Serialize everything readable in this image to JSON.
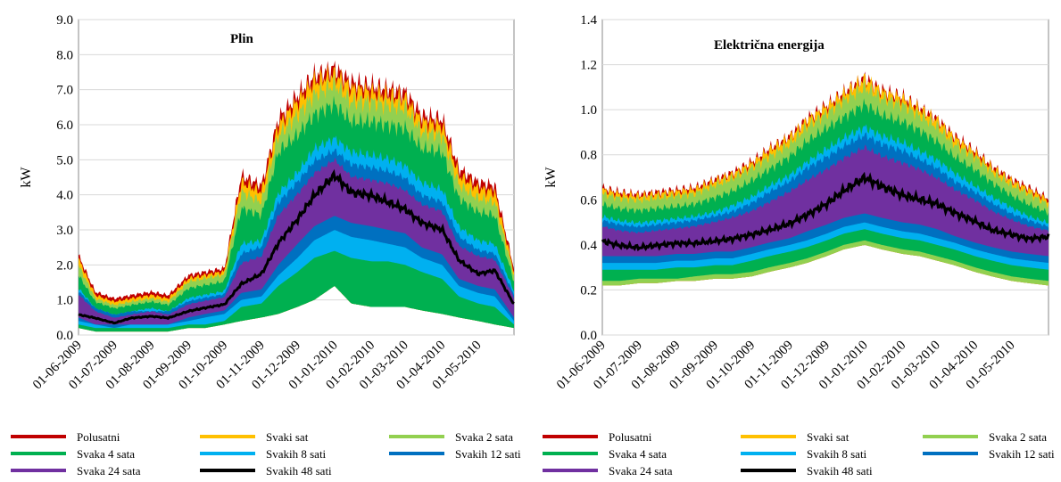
{
  "colors": {
    "Polusatni": "#c00000",
    "Svaki sat": "#ffc000",
    "Svaka 2 sata": "#92d050",
    "Svaka 4 sata": "#00b050",
    "Svakih 8 sati": "#00b0f0",
    "Svakih 12 sati": "#0070c0",
    "Svaka 24 sata": "#7030a0",
    "Svakih 48 sati": "#000000"
  },
  "chart_data": [
    {
      "type": "area",
      "title": "Plin",
      "xlabel": "",
      "ylabel": "kW",
      "ylim": [
        0,
        9
      ],
      "yticks": [
        "0.0",
        "1.0",
        "2.0",
        "3.0",
        "4.0",
        "5.0",
        "6.0",
        "7.0",
        "8.0",
        "9.0"
      ],
      "xticks": [
        "01-06-2009",
        "01-07-2009",
        "01-08-2009",
        "01-09-2009",
        "01-10-2009",
        "01-11-2009",
        "01-12-2009",
        "01-01-2010",
        "01-02-2010",
        "01-03-2010",
        "01-04-2010",
        "01-05-2010"
      ],
      "grid": true,
      "legend_position": "bottom",
      "x": [
        "2009-06-01",
        "2009-06-15",
        "2009-07-01",
        "2009-07-15",
        "2009-08-01",
        "2009-08-15",
        "2009-09-01",
        "2009-09-15",
        "2009-10-01",
        "2009-10-15",
        "2009-11-01",
        "2009-11-15",
        "2009-12-01",
        "2009-12-15",
        "2010-01-01",
        "2010-01-15",
        "2010-02-01",
        "2010-02-15",
        "2010-03-01",
        "2010-03-15",
        "2010-04-01",
        "2010-04-15",
        "2010-05-01",
        "2010-05-15",
        "2010-05-31"
      ],
      "series": [
        {
          "name": "Polusatni",
          "max": [
            2.4,
            1.3,
            1.1,
            1.2,
            1.3,
            1.2,
            1.8,
            1.9,
            2.0,
            4.8,
            4.5,
            6.5,
            7.2,
            7.8,
            8.0,
            7.6,
            7.5,
            7.4,
            7.3,
            6.6,
            6.5,
            5.0,
            4.6,
            4.5,
            2.0
          ],
          "min": [
            0.2,
            0.1,
            0.1,
            0.1,
            0.1,
            0.1,
            0.2,
            0.2,
            0.3,
            0.4,
            0.5,
            0.6,
            0.8,
            1.0,
            1.4,
            0.9,
            0.8,
            0.8,
            0.8,
            0.7,
            0.6,
            0.5,
            0.4,
            0.3,
            0.2
          ]
        },
        {
          "name": "Svaki sat",
          "max": [
            2.3,
            1.2,
            1.0,
            1.1,
            1.2,
            1.1,
            1.7,
            1.8,
            1.9,
            4.6,
            4.3,
            6.3,
            7.0,
            7.6,
            7.8,
            7.4,
            7.3,
            7.2,
            7.1,
            6.4,
            6.3,
            4.8,
            4.4,
            4.3,
            1.9
          ],
          "min": [
            0.2,
            0.1,
            0.1,
            0.1,
            0.1,
            0.1,
            0.2,
            0.2,
            0.3,
            0.4,
            0.5,
            0.6,
            0.8,
            1.0,
            1.4,
            0.9,
            0.8,
            0.8,
            0.8,
            0.7,
            0.6,
            0.5,
            0.4,
            0.3,
            0.2
          ]
        },
        {
          "name": "Svaka 2 sata",
          "max": [
            2.1,
            1.1,
            0.9,
            1.0,
            1.1,
            1.0,
            1.6,
            1.7,
            1.8,
            4.3,
            4.0,
            6.0,
            6.6,
            7.2,
            7.5,
            7.0,
            7.0,
            6.9,
            6.8,
            6.1,
            6.0,
            4.5,
            4.1,
            4.0,
            1.8
          ],
          "min": [
            0.2,
            0.1,
            0.1,
            0.1,
            0.1,
            0.1,
            0.2,
            0.2,
            0.3,
            0.4,
            0.5,
            0.6,
            0.8,
            1.0,
            1.4,
            0.9,
            0.8,
            0.8,
            0.8,
            0.7,
            0.6,
            0.5,
            0.4,
            0.3,
            0.2
          ]
        },
        {
          "name": "Svaka 4 sata",
          "max": [
            1.8,
            1.0,
            0.8,
            0.9,
            1.0,
            0.9,
            1.4,
            1.5,
            1.6,
            3.8,
            3.6,
            5.5,
            6.0,
            6.6,
            6.9,
            6.4,
            6.4,
            6.3,
            6.2,
            5.6,
            5.5,
            4.1,
            3.7,
            3.6,
            1.6
          ],
          "min": [
            0.2,
            0.1,
            0.1,
            0.1,
            0.1,
            0.1,
            0.2,
            0.2,
            0.3,
            0.4,
            0.5,
            0.6,
            0.8,
            1.0,
            1.4,
            0.9,
            0.8,
            0.8,
            0.8,
            0.7,
            0.6,
            0.5,
            0.4,
            0.3,
            0.2
          ]
        },
        {
          "name": "Svakih 8 sati",
          "max": [
            1.4,
            0.8,
            0.6,
            0.7,
            0.8,
            0.7,
            1.1,
            1.2,
            1.3,
            2.7,
            2.8,
            4.2,
            4.8,
            5.5,
            5.8,
            5.4,
            5.3,
            5.2,
            5.0,
            4.5,
            4.3,
            3.2,
            2.8,
            2.7,
            1.3
          ],
          "min": [
            0.3,
            0.2,
            0.2,
            0.2,
            0.2,
            0.2,
            0.3,
            0.3,
            0.4,
            0.8,
            0.9,
            1.4,
            1.8,
            2.2,
            2.4,
            2.2,
            2.1,
            2.1,
            2.0,
            1.8,
            1.6,
            1.1,
            0.9,
            0.8,
            0.3
          ]
        },
        {
          "name": "Svakih 12 sati",
          "max": [
            1.3,
            0.8,
            0.6,
            0.7,
            0.7,
            0.7,
            1.0,
            1.1,
            1.2,
            2.4,
            2.6,
            3.9,
            4.5,
            5.1,
            5.4,
            5.0,
            4.9,
            4.8,
            4.6,
            4.1,
            3.9,
            2.9,
            2.5,
            2.4,
            1.2
          ],
          "min": [
            0.4,
            0.3,
            0.2,
            0.3,
            0.3,
            0.3,
            0.4,
            0.5,
            0.6,
            1.0,
            1.1,
            1.7,
            2.2,
            2.7,
            3.0,
            2.8,
            2.7,
            2.6,
            2.5,
            2.2,
            2.0,
            1.4,
            1.2,
            1.1,
            0.4
          ]
        },
        {
          "name": "Svaka 24 sata",
          "max": [
            1.2,
            0.7,
            0.5,
            0.6,
            0.7,
            0.6,
            0.9,
            1.0,
            1.1,
            2.1,
            2.3,
            3.5,
            4.1,
            4.7,
            5.1,
            4.6,
            4.5,
            4.4,
            4.2,
            3.8,
            3.6,
            2.6,
            2.3,
            2.2,
            1.1
          ],
          "min": [
            0.5,
            0.3,
            0.3,
            0.3,
            0.3,
            0.3,
            0.5,
            0.6,
            0.7,
            1.2,
            1.3,
            2.0,
            2.6,
            3.1,
            3.4,
            3.2,
            3.1,
            3.0,
            2.9,
            2.5,
            2.3,
            1.6,
            1.4,
            1.3,
            0.5
          ]
        },
        {
          "name": "Svakih 48 sati",
          "values": [
            0.6,
            0.5,
            0.35,
            0.5,
            0.55,
            0.5,
            0.7,
            0.8,
            0.9,
            1.5,
            1.8,
            2.7,
            3.4,
            4.1,
            4.7,
            4.2,
            4.1,
            3.9,
            3.7,
            3.3,
            3.1,
            2.2,
            1.8,
            1.9,
            0.9
          ]
        }
      ]
    },
    {
      "type": "area",
      "title": "Električna energija",
      "xlabel": "",
      "ylabel": "kW",
      "ylim": [
        0,
        1.4
      ],
      "yticks": [
        "0.0",
        "0.2",
        "0.4",
        "0.6",
        "0.8",
        "1.0",
        "1.2",
        "1.4"
      ],
      "xticks": [
        "01-06-2009",
        "01-07-2009",
        "01-08-2009",
        "01-09-2009",
        "01-10-2009",
        "01-11-2009",
        "01-12-2009",
        "01-01-2010",
        "01-02-2010",
        "01-03-2010",
        "01-04-2010",
        "01-05-2010"
      ],
      "grid": true,
      "legend_position": "bottom",
      "x": [
        "2009-06-01",
        "2009-06-15",
        "2009-07-01",
        "2009-07-15",
        "2009-08-01",
        "2009-08-15",
        "2009-09-01",
        "2009-09-15",
        "2009-10-01",
        "2009-10-15",
        "2009-11-01",
        "2009-11-15",
        "2009-12-01",
        "2009-12-15",
        "2010-01-01",
        "2010-01-15",
        "2010-02-01",
        "2010-02-15",
        "2010-03-01",
        "2010-03-15",
        "2010-04-01",
        "2010-04-15",
        "2010-05-01",
        "2010-05-15",
        "2010-05-31"
      ],
      "series": [
        {
          "name": "Polusatni",
          "max": [
            0.68,
            0.66,
            0.65,
            0.66,
            0.67,
            0.68,
            0.72,
            0.75,
            0.8,
            0.86,
            0.92,
            1.0,
            1.06,
            1.12,
            1.19,
            1.13,
            1.1,
            1.05,
            1.0,
            0.92,
            0.85,
            0.78,
            0.72,
            0.68,
            0.63
          ],
          "min": [
            0.22,
            0.22,
            0.23,
            0.23,
            0.24,
            0.24,
            0.25,
            0.25,
            0.26,
            0.28,
            0.3,
            0.32,
            0.35,
            0.38,
            0.4,
            0.38,
            0.36,
            0.35,
            0.33,
            0.31,
            0.28,
            0.26,
            0.24,
            0.23,
            0.22
          ]
        },
        {
          "name": "Svaki sat",
          "max": [
            0.67,
            0.65,
            0.64,
            0.65,
            0.66,
            0.67,
            0.71,
            0.74,
            0.79,
            0.85,
            0.91,
            0.99,
            1.05,
            1.11,
            1.18,
            1.12,
            1.09,
            1.04,
            0.99,
            0.91,
            0.84,
            0.77,
            0.71,
            0.67,
            0.62
          ],
          "min": [
            0.22,
            0.22,
            0.23,
            0.23,
            0.24,
            0.24,
            0.25,
            0.25,
            0.26,
            0.28,
            0.3,
            0.32,
            0.35,
            0.38,
            0.4,
            0.38,
            0.36,
            0.35,
            0.33,
            0.31,
            0.28,
            0.26,
            0.24,
            0.23,
            0.22
          ]
        },
        {
          "name": "Svaka 2 sata",
          "max": [
            0.65,
            0.63,
            0.62,
            0.63,
            0.64,
            0.65,
            0.69,
            0.72,
            0.77,
            0.82,
            0.88,
            0.96,
            1.02,
            1.08,
            1.14,
            1.09,
            1.06,
            1.01,
            0.96,
            0.88,
            0.82,
            0.75,
            0.69,
            0.65,
            0.6
          ],
          "min": [
            0.22,
            0.22,
            0.23,
            0.23,
            0.24,
            0.24,
            0.25,
            0.25,
            0.26,
            0.28,
            0.3,
            0.32,
            0.35,
            0.38,
            0.4,
            0.38,
            0.36,
            0.35,
            0.33,
            0.31,
            0.28,
            0.26,
            0.24,
            0.23,
            0.22
          ]
        },
        {
          "name": "Svaka 4 sata",
          "max": [
            0.6,
            0.58,
            0.57,
            0.58,
            0.59,
            0.6,
            0.63,
            0.66,
            0.71,
            0.76,
            0.82,
            0.89,
            0.95,
            1.0,
            1.06,
            1.01,
            0.98,
            0.94,
            0.89,
            0.82,
            0.76,
            0.7,
            0.64,
            0.6,
            0.56
          ],
          "min": [
            0.24,
            0.24,
            0.25,
            0.25,
            0.25,
            0.26,
            0.27,
            0.27,
            0.28,
            0.3,
            0.32,
            0.34,
            0.37,
            0.4,
            0.42,
            0.4,
            0.38,
            0.37,
            0.35,
            0.33,
            0.3,
            0.28,
            0.26,
            0.25,
            0.24
          ]
        },
        {
          "name": "Svakih 8 sati",
          "max": [
            0.54,
            0.52,
            0.51,
            0.52,
            0.53,
            0.54,
            0.56,
            0.59,
            0.63,
            0.68,
            0.73,
            0.79,
            0.85,
            0.9,
            0.95,
            0.91,
            0.88,
            0.84,
            0.8,
            0.74,
            0.68,
            0.63,
            0.58,
            0.54,
            0.51
          ],
          "min": [
            0.29,
            0.29,
            0.29,
            0.29,
            0.3,
            0.3,
            0.31,
            0.31,
            0.33,
            0.35,
            0.37,
            0.39,
            0.42,
            0.45,
            0.47,
            0.45,
            0.43,
            0.42,
            0.4,
            0.38,
            0.35,
            0.33,
            0.31,
            0.3,
            0.29
          ]
        },
        {
          "name": "Svakih 12 sati",
          "max": [
            0.52,
            0.5,
            0.49,
            0.5,
            0.51,
            0.52,
            0.54,
            0.56,
            0.6,
            0.65,
            0.7,
            0.76,
            0.81,
            0.86,
            0.91,
            0.87,
            0.84,
            0.8,
            0.76,
            0.7,
            0.65,
            0.6,
            0.55,
            0.52,
            0.49
          ],
          "min": [
            0.32,
            0.32,
            0.32,
            0.32,
            0.33,
            0.33,
            0.34,
            0.34,
            0.36,
            0.38,
            0.4,
            0.42,
            0.45,
            0.48,
            0.5,
            0.48,
            0.46,
            0.45,
            0.43,
            0.41,
            0.38,
            0.36,
            0.34,
            0.33,
            0.32
          ]
        },
        {
          "name": "Svaka 24 sata",
          "max": [
            0.49,
            0.47,
            0.46,
            0.47,
            0.48,
            0.49,
            0.51,
            0.53,
            0.56,
            0.6,
            0.65,
            0.7,
            0.75,
            0.8,
            0.85,
            0.81,
            0.78,
            0.75,
            0.71,
            0.66,
            0.61,
            0.56,
            0.52,
            0.49,
            0.47
          ],
          "min": [
            0.35,
            0.35,
            0.35,
            0.35,
            0.36,
            0.36,
            0.37,
            0.37,
            0.39,
            0.41,
            0.43,
            0.46,
            0.49,
            0.52,
            0.54,
            0.52,
            0.5,
            0.49,
            0.47,
            0.44,
            0.41,
            0.39,
            0.37,
            0.36,
            0.35
          ]
        },
        {
          "name": "Svakih 48 sati",
          "values": [
            0.43,
            0.41,
            0.4,
            0.41,
            0.42,
            0.42,
            0.43,
            0.44,
            0.46,
            0.48,
            0.51,
            0.55,
            0.6,
            0.66,
            0.72,
            0.68,
            0.64,
            0.62,
            0.6,
            0.56,
            0.52,
            0.48,
            0.46,
            0.44,
            0.45
          ]
        }
      ]
    }
  ],
  "legend": [
    [
      "Polusatni",
      "Svaki sat",
      "Svaka 2 sata"
    ],
    [
      "Svaka 4 sata",
      "Svakih 8 sati",
      "Svakih 12 sati"
    ],
    [
      "Svaka 24 sata",
      "Svakih 48 sati"
    ]
  ]
}
